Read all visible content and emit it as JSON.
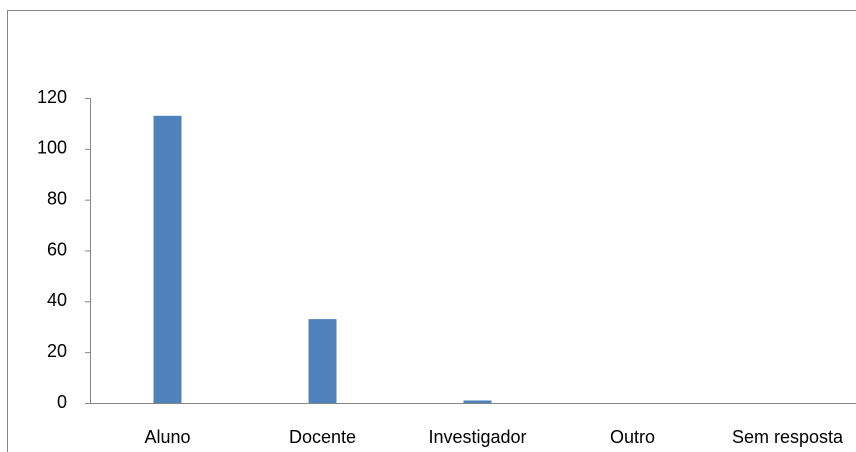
{
  "chart_data": {
    "type": "bar",
    "categories": [
      "Aluno",
      "Docente",
      "Investigador",
      "Outro",
      "Sem resposta"
    ],
    "values": [
      113,
      33,
      1,
      0,
      0
    ],
    "color": "#4f81bd",
    "ylim": [
      0,
      120
    ],
    "yticks": [
      0,
      20,
      40,
      60,
      80,
      100,
      120
    ],
    "grid": false
  }
}
